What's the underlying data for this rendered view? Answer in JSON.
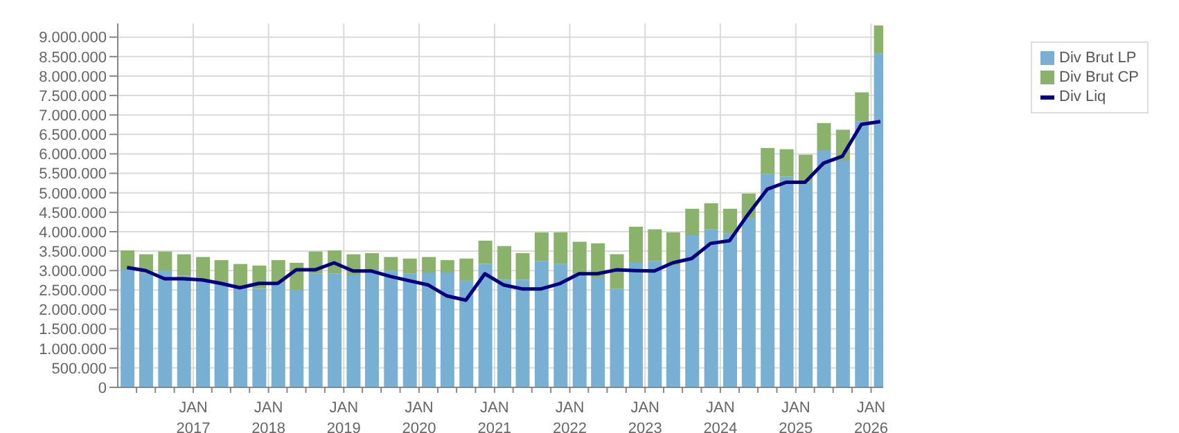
{
  "chart_data": {
    "type": "bar",
    "stacked": true,
    "x": [
      "2016-02-15",
      "2016-05-15",
      "2016-08-15",
      "2016-11-15",
      "2017-02-15",
      "2017-05-15",
      "2017-08-15",
      "2017-11-15",
      "2018-02-15",
      "2018-05-15",
      "2018-08-15",
      "2018-11-15",
      "2019-02-15",
      "2019-05-15",
      "2019-08-15",
      "2019-11-15",
      "2020-02-15",
      "2020-05-15",
      "2020-08-15",
      "2020-11-15",
      "2021-02-15",
      "2021-05-15",
      "2021-08-15",
      "2021-11-15",
      "2022-02-15",
      "2022-05-15",
      "2022-08-15",
      "2022-11-15",
      "2023-02-15",
      "2023-05-15",
      "2023-08-15",
      "2023-11-15",
      "2024-02-15",
      "2024-05-15",
      "2024-08-15",
      "2024-11-15",
      "2025-02-15",
      "2025-05-15",
      "2025-08-15",
      "2025-11-15",
      "2026-02-15"
    ],
    "series": [
      {
        "name": "Div Brut LP",
        "color": "#77b0d3",
        "values": [
          3020000,
          2940000,
          2990000,
          2870000,
          2750000,
          2700000,
          2610000,
          2530000,
          2670000,
          2490000,
          2920000,
          2920000,
          2880000,
          3020000,
          2990000,
          2920000,
          2950000,
          2950000,
          2740000,
          3170000,
          2770000,
          2770000,
          3240000,
          3170000,
          2920000,
          2810000,
          2530000,
          3200000,
          3240000,
          3130000,
          3910000,
          4060000,
          3950000,
          4340000,
          5480000,
          5410000,
          5270000,
          6080000,
          5830000,
          6830000,
          8570000
        ]
      },
      {
        "name": "Div Brut CP",
        "color": "#8ab26a",
        "values": [
          500000,
          480000,
          500000,
          550000,
          600000,
          570000,
          560000,
          600000,
          600000,
          710000,
          570000,
          600000,
          540000,
          430000,
          360000,
          390000,
          400000,
          320000,
          570000,
          600000,
          860000,
          680000,
          740000,
          810000,
          820000,
          890000,
          890000,
          930000,
          820000,
          850000,
          680000,
          670000,
          640000,
          640000,
          670000,
          710000,
          710000,
          710000,
          790000,
          750000,
          730000
        ]
      },
      {
        "name": "Div Liq",
        "type": "line",
        "color": "#000080",
        "values": [
          3080000,
          3000000,
          2790000,
          2790000,
          2760000,
          2670000,
          2560000,
          2670000,
          2670000,
          3020000,
          3020000,
          3200000,
          2990000,
          2990000,
          2850000,
          2740000,
          2630000,
          2350000,
          2240000,
          2920000,
          2630000,
          2530000,
          2530000,
          2670000,
          2920000,
          2920000,
          3020000,
          3000000,
          2990000,
          3200000,
          3310000,
          3700000,
          3770000,
          4450000,
          5090000,
          5270000,
          5270000,
          5760000,
          5940000,
          6760000,
          6830000
        ]
      }
    ],
    "xlim": [
      "2016-01-01",
      "2026-03-01"
    ],
    "xticks": [
      {
        "value": "2016-04-01",
        "label": null
      },
      {
        "value": "2016-07-01",
        "label": null
      },
      {
        "value": "2016-10-01",
        "label": null
      },
      {
        "value": "2017-01-01",
        "label": "JAN 2017"
      },
      {
        "value": "2017-04-01",
        "label": null
      },
      {
        "value": "2017-07-01",
        "label": null
      },
      {
        "value": "2017-10-01",
        "label": null
      },
      {
        "value": "2018-01-01",
        "label": "JAN 2018"
      },
      {
        "value": "2018-04-01",
        "label": null
      },
      {
        "value": "2018-07-01",
        "label": null
      },
      {
        "value": "2018-10-01",
        "label": null
      },
      {
        "value": "2019-01-01",
        "label": "JAN 2019"
      },
      {
        "value": "2019-04-01",
        "label": null
      },
      {
        "value": "2019-07-01",
        "label": null
      },
      {
        "value": "2019-10-01",
        "label": null
      },
      {
        "value": "2020-01-01",
        "label": "JAN 2020"
      },
      {
        "value": "2020-04-01",
        "label": null
      },
      {
        "value": "2020-07-01",
        "label": null
      },
      {
        "value": "2020-10-01",
        "label": null
      },
      {
        "value": "2021-01-01",
        "label": "JAN 2021"
      },
      {
        "value": "2021-04-01",
        "label": null
      },
      {
        "value": "2021-07-01",
        "label": null
      },
      {
        "value": "2021-10-01",
        "label": null
      },
      {
        "value": "2022-01-01",
        "label": "JAN 2022"
      },
      {
        "value": "2022-04-01",
        "label": null
      },
      {
        "value": "2022-07-01",
        "label": null
      },
      {
        "value": "2022-10-01",
        "label": null
      },
      {
        "value": "2023-01-01",
        "label": "JAN 2023"
      },
      {
        "value": "2023-04-01",
        "label": null
      },
      {
        "value": "2023-07-01",
        "label": null
      },
      {
        "value": "2023-10-01",
        "label": null
      },
      {
        "value": "2024-01-01",
        "label": "JAN 2024"
      },
      {
        "value": "2024-04-01",
        "label": null
      },
      {
        "value": "2024-07-01",
        "label": null
      },
      {
        "value": "2024-10-01",
        "label": null
      },
      {
        "value": "2025-01-01",
        "label": "JAN 2025"
      },
      {
        "value": "2025-04-01",
        "label": null
      },
      {
        "value": "2025-07-01",
        "label": null
      },
      {
        "value": "2025-10-01",
        "label": null
      },
      {
        "value": "2026-01-01",
        "label": "JAN 2026"
      }
    ],
    "ylim": [
      0,
      9350000
    ],
    "yticks": [
      0,
      {
        "value": 500000,
        "label": "500.000"
      },
      {
        "value": 1000000,
        "label": "1.000.000"
      },
      {
        "value": 1500000,
        "label": "1.500.000"
      },
      {
        "value": 2000000,
        "label": "2.000.000"
      },
      {
        "value": 2500000,
        "label": "2.500.000"
      },
      {
        "value": 3000000,
        "label": "3.000.000"
      },
      {
        "value": 3500000,
        "label": "3.500.000"
      },
      {
        "value": 4000000,
        "label": "4.000.000"
      },
      {
        "value": 4500000,
        "label": "4.500.000"
      },
      {
        "value": 5000000,
        "label": "5.000.000"
      },
      {
        "value": 5500000,
        "label": "5.500.000"
      },
      {
        "value": 6000000,
        "label": "6.000.000"
      },
      {
        "value": 6500000,
        "label": "6.500.000"
      },
      {
        "value": 7000000,
        "label": "7.000.000"
      },
      {
        "value": 7500000,
        "label": "7.500.000"
      },
      {
        "value": 8000000,
        "label": "8.000.000"
      },
      {
        "value": 8500000,
        "label": "8.500.000"
      },
      {
        "value": 9000000,
        "label": "9.000.000"
      }
    ],
    "grid": true,
    "legend": "top right"
  }
}
